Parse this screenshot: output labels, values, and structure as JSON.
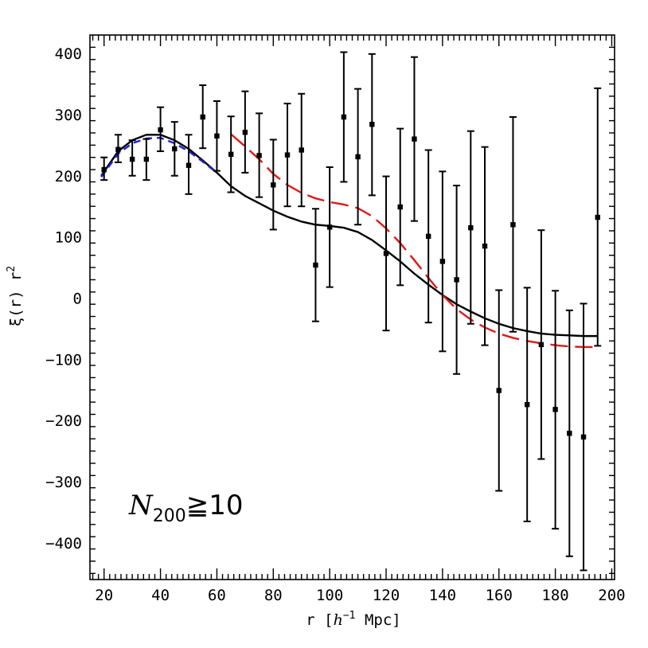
{
  "chart_data": {
    "type": "scatter",
    "xlabel": {
      "prefix": "r [",
      "italic": "h",
      "sup": "−1",
      "suffix": " Mpc]"
    },
    "ylabel": {
      "main": "ξ(r) r",
      "sup": "2"
    },
    "xlim": [
      15,
      201
    ],
    "ylim": [
      -460,
      430
    ],
    "xticks": [
      20,
      40,
      60,
      80,
      100,
      120,
      140,
      160,
      180,
      200
    ],
    "yticks": [
      -400,
      -300,
      -200,
      -100,
      0,
      100,
      200,
      300,
      400
    ],
    "xtick_labels": [
      "20",
      "40",
      "60",
      "80",
      "100",
      "120",
      "140",
      "160",
      "180",
      "200"
    ],
    "ytick_labels": [
      "−400",
      "−300",
      "−200",
      "−100",
      "0",
      "100",
      "200",
      "300",
      "400"
    ],
    "annotation": {
      "italic": "N",
      "sub": "200",
      "rest": "≧10"
    },
    "points": [
      {
        "x": 20,
        "y": 210,
        "lo": 193,
        "hi": 230
      },
      {
        "x": 25,
        "y": 243,
        "lo": 222,
        "hi": 267
      },
      {
        "x": 30,
        "y": 227,
        "lo": 200,
        "hi": 258
      },
      {
        "x": 35,
        "y": 227,
        "lo": 193,
        "hi": 260
      },
      {
        "x": 40,
        "y": 275,
        "lo": 240,
        "hi": 312
      },
      {
        "x": 45,
        "y": 244,
        "lo": 200,
        "hi": 288
      },
      {
        "x": 50,
        "y": 217,
        "lo": 170,
        "hi": 267
      },
      {
        "x": 55,
        "y": 296,
        "lo": 245,
        "hi": 348
      },
      {
        "x": 60,
        "y": 265,
        "lo": 208,
        "hi": 322
      },
      {
        "x": 65,
        "y": 235,
        "lo": 173,
        "hi": 297
      },
      {
        "x": 70,
        "y": 271,
        "lo": 205,
        "hi": 338
      },
      {
        "x": 75,
        "y": 233,
        "lo": 165,
        "hi": 302
      },
      {
        "x": 80,
        "y": 185,
        "lo": 112,
        "hi": 259
      },
      {
        "x": 85,
        "y": 234,
        "lo": 150,
        "hi": 318
      },
      {
        "x": 90,
        "y": 242,
        "lo": 150,
        "hi": 334
      },
      {
        "x": 95,
        "y": 54,
        "lo": -38,
        "hi": 146
      },
      {
        "x": 100,
        "y": 116,
        "lo": 18,
        "hi": 214
      },
      {
        "x": 105,
        "y": 296,
        "lo": 190,
        "hi": 402
      },
      {
        "x": 110,
        "y": 231,
        "lo": 120,
        "hi": 342
      },
      {
        "x": 115,
        "y": 284,
        "lo": 168,
        "hi": 399
      },
      {
        "x": 120,
        "y": 73,
        "lo": -53,
        "hi": 199
      },
      {
        "x": 125,
        "y": 149,
        "lo": 21,
        "hi": 277
      },
      {
        "x": 130,
        "y": 260,
        "lo": 126,
        "hi": 394
      },
      {
        "x": 135,
        "y": 101,
        "lo": -40,
        "hi": 242
      },
      {
        "x": 140,
        "y": 60,
        "lo": -87,
        "hi": 207
      },
      {
        "x": 145,
        "y": 30,
        "lo": -124,
        "hi": 184
      },
      {
        "x": 150,
        "y": 115,
        "lo": -42,
        "hi": 273
      },
      {
        "x": 155,
        "y": 85,
        "lo": -77,
        "hi": 247
      },
      {
        "x": 160,
        "y": -151,
        "lo": -315,
        "hi": 13
      },
      {
        "x": 165,
        "y": 120,
        "lo": -55,
        "hi": 296
      },
      {
        "x": 170,
        "y": -174,
        "lo": -365,
        "hi": 17
      },
      {
        "x": 175,
        "y": -76,
        "lo": -263,
        "hi": 111
      },
      {
        "x": 180,
        "y": -182,
        "lo": -377,
        "hi": 12
      },
      {
        "x": 185,
        "y": -221,
        "lo": -422,
        "hi": -20
      },
      {
        "x": 190,
        "y": -227,
        "lo": -445,
        "hi": -9
      },
      {
        "x": 195,
        "y": 132,
        "lo": -78,
        "hi": 343
      }
    ],
    "series": [
      {
        "color": "#000000",
        "dash": "solid",
        "x": [
          19,
          25,
          30,
          35,
          40,
          45,
          50,
          55,
          60,
          65,
          70,
          75,
          80,
          85,
          90,
          95,
          100,
          105,
          110,
          115,
          120,
          125,
          130,
          135,
          140,
          145,
          150,
          155,
          160,
          165,
          170,
          175,
          180,
          185,
          190,
          195
        ],
        "y": [
          200,
          240,
          258,
          267,
          267,
          258,
          244,
          225,
          205,
          183,
          167,
          155,
          143,
          133,
          125,
          120,
          118,
          115,
          108,
          95,
          78,
          60,
          40,
          22,
          5,
          -10,
          -22,
          -33,
          -42,
          -49,
          -54,
          -58,
          -60,
          -61,
          -62,
          -62
        ]
      },
      {
        "color": "#1f1fe0",
        "dash": "dashed",
        "x": [
          19,
          25,
          30,
          35,
          40,
          45,
          50,
          55,
          60
        ],
        "y": [
          198,
          236,
          253,
          261,
          262,
          253,
          240,
          223,
          205
        ]
      },
      {
        "color": "#e01818",
        "dash": "longdash",
        "x": [
          65,
          70,
          75,
          80,
          85,
          90,
          95,
          100,
          105,
          110,
          115,
          120,
          125,
          130,
          135,
          140,
          145,
          150,
          155,
          160,
          165,
          170,
          175,
          180,
          185,
          190,
          195
        ],
        "y": [
          268,
          248,
          227,
          203,
          185,
          172,
          163,
          157,
          153,
          147,
          134,
          114,
          90,
          62,
          33,
          5,
          -18,
          -35,
          -48,
          -58,
          -65,
          -70,
          -74,
          -77,
          -79,
          -80,
          -80
        ]
      }
    ]
  }
}
